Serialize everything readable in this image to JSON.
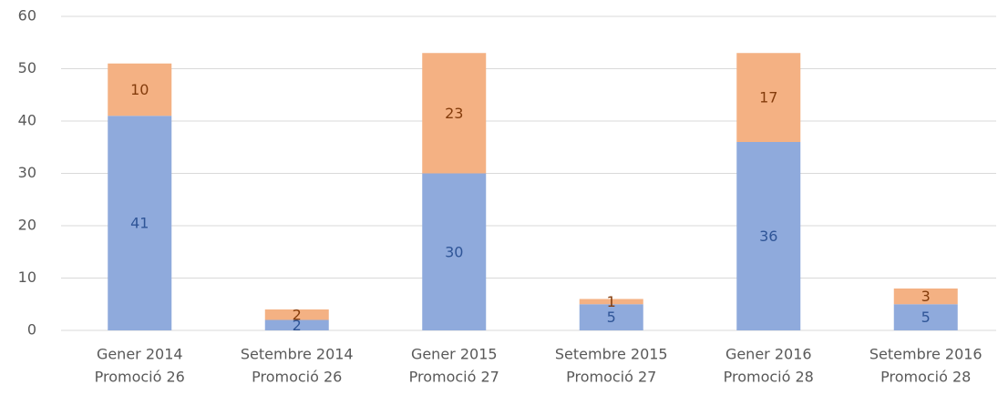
{
  "chart_data": {
    "type": "stacked_bar",
    "categories": [
      [
        "Gener  2014",
        "Promoció 26"
      ],
      [
        "Setembre 2014",
        "Promoció 26"
      ],
      [
        "Gener 2015",
        "Promoció 27"
      ],
      [
        "Setembre 2015",
        "Promoció 27"
      ],
      [
        "Gener 2016",
        "Promoció 28"
      ],
      [
        "Setembre 2016",
        "Promoció 28"
      ]
    ],
    "series": [
      {
        "color": "#8faadc",
        "label_color": "#2f5597",
        "values": [
          41,
          2,
          30,
          5,
          36,
          5
        ]
      },
      {
        "color": "#f4b183",
        "label_color": "#843c0c",
        "values": [
          10,
          2,
          23,
          1,
          17,
          3
        ]
      }
    ],
    "ylim": [
      0,
      60
    ],
    "yticks": [
      0,
      10,
      20,
      30,
      40,
      50,
      60
    ],
    "grid": true
  }
}
